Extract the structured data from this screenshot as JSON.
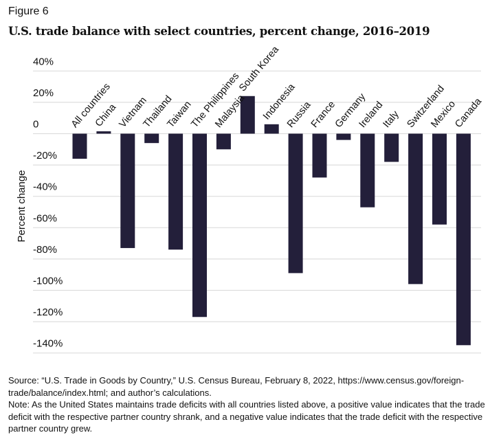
{
  "figure_label": "Figure 6",
  "chart_data": {
    "type": "bar",
    "title": "U.S. trade balance with select countries, percent change, 2016–2019",
    "xlabel": "",
    "ylabel": "Percent change",
    "ylim": [
      -140,
      40
    ],
    "yticks": [
      40,
      20,
      0,
      -20,
      -40,
      -60,
      -80,
      -100,
      -120,
      -140
    ],
    "ytick_labels": [
      "40%",
      "20%",
      "0",
      "-20%",
      "-40%",
      "-60%",
      "-80%",
      "-100%",
      "-120%",
      "-140%"
    ],
    "grid": true,
    "categories": [
      "All countries",
      "China",
      "Vietnam",
      "Thailand",
      "Taiwan",
      "The Philippines",
      "Malaysia",
      "South Korea",
      "Indonesia",
      "Russia",
      "France",
      "Germany",
      "Ireland",
      "Italy",
      "Switzerland",
      "Mexico",
      "Canada"
    ],
    "values": [
      -16,
      1.5,
      -73,
      -6,
      -74,
      -117,
      -10,
      24,
      6,
      -89,
      -28,
      -4,
      -47,
      -18,
      -96,
      -58,
      -135
    ],
    "bar_color": "#231f3a",
    "grid_color": "#dddddd"
  },
  "notes": {
    "source": "Source: “U.S. Trade in Goods by Country,” U.S. Census Bureau, February 8, 2022, https://www.census.gov/foreign-trade/balance/index.html; and author’s calculations.",
    "note": "Note: As the United States maintains trade deficits with all countries listed above, a positive value indicates that the trade deficit with the respective partner country shrank, and a negative value indicates that the trade deficit with the respective partner country grew."
  }
}
